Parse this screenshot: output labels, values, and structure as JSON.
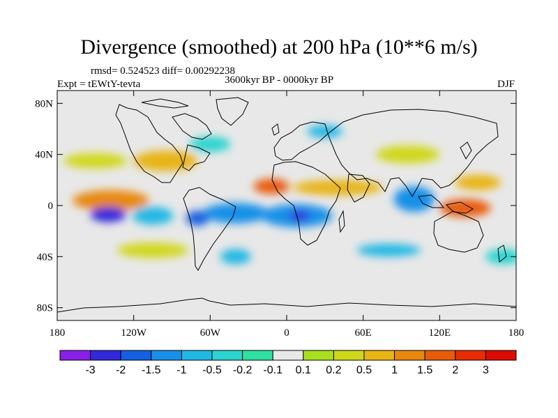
{
  "chart_data": {
    "type": "heatmap",
    "title": "Divergence (smoothed) at 200 hPa (10**6 m/s)",
    "stats_text": "rmsd= 0.524523 diff= 0.00292238",
    "left_label": "Expt = tEWtY-tevta",
    "center_label": "3600kyr BP - 0000kyr BP",
    "right_label": "DJF",
    "x_axis": {
      "range": [
        -180,
        180
      ],
      "ticks": [
        -180,
        -120,
        -60,
        0,
        60,
        120,
        180
      ],
      "tick_labels": [
        "180",
        "120W",
        "60W",
        "0",
        "60E",
        "120E",
        "180"
      ]
    },
    "y_axis": {
      "range": [
        -90,
        90
      ],
      "ticks": [
        80,
        40,
        0,
        -40,
        -80
      ],
      "tick_labels": [
        "80N",
        "40N",
        "0",
        "40S",
        "80S"
      ]
    },
    "colorbar": {
      "levels": [
        "-3",
        "-2",
        "-1.5",
        "-1",
        "-0.5",
        "-0.2",
        "-0.1",
        "0.1",
        "0.2",
        "0.5",
        "1",
        "1.5",
        "2",
        "3"
      ],
      "colors": [
        "#8a1fe8",
        "#3228dc",
        "#1460e0",
        "#1890e8",
        "#20b8e4",
        "#2cd4d0",
        "#30e0a0",
        "#e8e8e8",
        "#a8e020",
        "#d0d81a",
        "#e8b414",
        "#e8880c",
        "#e85c08",
        "#e82c04",
        "#dc0c04"
      ]
    },
    "field_blobs": [
      {
        "lon": -138,
        "lat": 4,
        "rlon": 30,
        "rlat": 8,
        "value": 1.2
      },
      {
        "lon": -140,
        "lat": -7,
        "rlon": 14,
        "rlat": 6,
        "value": -2.6
      },
      {
        "lon": -105,
        "lat": -8,
        "rlon": 16,
        "rlat": 7,
        "value": -0.6
      },
      {
        "lon": -40,
        "lat": -6,
        "rlon": 26,
        "rlat": 8,
        "value": -1.2
      },
      {
        "lon": 8,
        "lat": -8,
        "rlon": 28,
        "rlat": 9,
        "value": -1.4
      },
      {
        "lon": 10,
        "lat": -8,
        "rlon": 8,
        "rlat": 4,
        "value": -2.8
      },
      {
        "lon": -70,
        "lat": -10,
        "rlon": 9,
        "rlat": 6,
        "value": -1.5
      },
      {
        "lon": -12,
        "lat": 15,
        "rlon": 14,
        "rlat": 6,
        "value": 1.6
      },
      {
        "lon": 40,
        "lat": 14,
        "rlon": 35,
        "rlat": 6,
        "value": 0.8
      },
      {
        "lon": 140,
        "lat": -2,
        "rlon": 20,
        "rlat": 7,
        "value": 2.0
      },
      {
        "lon": 100,
        "lat": 5,
        "rlon": 16,
        "rlat": 10,
        "value": -1.0
      },
      {
        "lon": 150,
        "lat": 18,
        "rlon": 18,
        "rlat": 6,
        "value": 0.6
      },
      {
        "lon": -95,
        "lat": 35,
        "rlon": 25,
        "rlat": 8,
        "value": 0.7
      },
      {
        "lon": -150,
        "lat": 35,
        "rlon": 25,
        "rlat": 6,
        "value": 0.3
      },
      {
        "lon": 95,
        "lat": 40,
        "rlon": 25,
        "rlat": 7,
        "value": 0.5
      },
      {
        "lon": 80,
        "lat": -35,
        "rlon": 25,
        "rlat": 5,
        "value": -0.5
      },
      {
        "lon": -105,
        "lat": -35,
        "rlon": 28,
        "rlat": 6,
        "value": 0.3
      },
      {
        "lon": -40,
        "lat": -40,
        "rlon": 12,
        "rlat": 6,
        "value": -0.6
      },
      {
        "lon": 170,
        "lat": -40,
        "rlon": 14,
        "rlat": 6,
        "value": -0.4
      },
      {
        "lon": 30,
        "lat": 58,
        "rlon": 14,
        "rlat": 5,
        "value": -0.5
      },
      {
        "lon": -60,
        "lat": 48,
        "rlon": 16,
        "rlat": 6,
        "value": -0.4
      }
    ]
  }
}
